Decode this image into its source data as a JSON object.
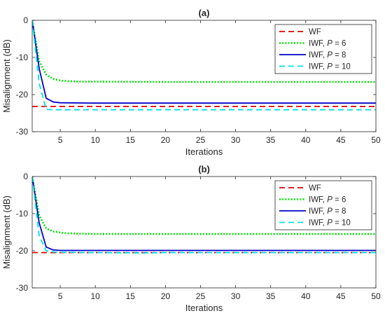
{
  "chart_data": [
    {
      "type": "line",
      "title": "(a)",
      "xlabel": "Iterations",
      "ylabel": "Misalignment (dB)",
      "xlim": [
        1,
        50
      ],
      "ylim": [
        -30,
        0
      ],
      "xticks": [
        5,
        10,
        15,
        20,
        25,
        30,
        35,
        40,
        45,
        50
      ],
      "yticks": [
        -30,
        -20,
        -10,
        0
      ],
      "grid": false,
      "legend_position": "top-right",
      "series": [
        {
          "name": "WF",
          "legend_prefix": "WF",
          "legend_param": "",
          "legend_value": "",
          "color": "#e00000",
          "style": "dashed",
          "x": [
            1,
            50
          ],
          "y": [
            -23.2,
            -23.2
          ]
        },
        {
          "name": "IWF, P = 6",
          "legend_prefix": "IWF, ",
          "legend_param": "P",
          "legend_value": " = 6",
          "color": "#00e000",
          "style": "dotted",
          "x": [
            1,
            2,
            3,
            4,
            5,
            6,
            8,
            10,
            20,
            30,
            40,
            50
          ],
          "y": [
            0,
            -11,
            -14.6,
            -15.8,
            -16.2,
            -16.4,
            -16.5,
            -16.5,
            -16.6,
            -16.6,
            -16.6,
            -16.6
          ]
        },
        {
          "name": "IWF, P = 8",
          "legend_prefix": "IWF, ",
          "legend_param": "P",
          "legend_value": " = 8",
          "color": "#0000c8",
          "style": "solid",
          "x": [
            1,
            2,
            3,
            4,
            5,
            10,
            20,
            30,
            40,
            50
          ],
          "y": [
            0,
            -13,
            -21,
            -22,
            -22.2,
            -22.3,
            -22.3,
            -22.3,
            -22.3,
            -22.3
          ]
        },
        {
          "name": "IWF, P = 10",
          "legend_prefix": "IWF, ",
          "legend_param": "P",
          "legend_value": " = 10",
          "color": "#00e0e8",
          "style": "dashed",
          "x": [
            1,
            2,
            3,
            4,
            5,
            10,
            20,
            30,
            40,
            50
          ],
          "y": [
            0,
            -17,
            -24,
            -24.1,
            -24.1,
            -24.1,
            -24.1,
            -24.1,
            -24.1,
            -24.1
          ]
        }
      ]
    },
    {
      "type": "line",
      "title": "(b)",
      "xlabel": "Iterations",
      "ylabel": "Misalignment (dB)",
      "xlim": [
        1,
        50
      ],
      "ylim": [
        -30,
        0
      ],
      "xticks": [
        5,
        10,
        15,
        20,
        25,
        30,
        35,
        40,
        45,
        50
      ],
      "yticks": [
        -30,
        -20,
        -10,
        0
      ],
      "grid": false,
      "legend_position": "top-right",
      "series": [
        {
          "name": "WF",
          "legend_prefix": "WF",
          "legend_param": "",
          "legend_value": "",
          "color": "#e00000",
          "style": "dashed",
          "x": [
            1,
            50
          ],
          "y": [
            -20.5,
            -20.5
          ]
        },
        {
          "name": "IWF, P = 6",
          "legend_prefix": "IWF, ",
          "legend_param": "P",
          "legend_value": " = 6",
          "color": "#00e000",
          "style": "dotted",
          "x": [
            1,
            2,
            3,
            4,
            5,
            6,
            8,
            10,
            20,
            30,
            40,
            50
          ],
          "y": [
            0,
            -10.5,
            -14,
            -14.8,
            -15.1,
            -15.3,
            -15.4,
            -15.5,
            -15.5,
            -15.5,
            -15.5,
            -15.5
          ]
        },
        {
          "name": "IWF, P = 8",
          "legend_prefix": "IWF, ",
          "legend_param": "P",
          "legend_value": " = 8",
          "color": "#0000c8",
          "style": "solid",
          "x": [
            1,
            2,
            3,
            4,
            5,
            10,
            20,
            30,
            40,
            50
          ],
          "y": [
            0,
            -12.5,
            -19,
            -19.8,
            -19.9,
            -19.9,
            -19.9,
            -19.9,
            -19.9,
            -19.9
          ]
        },
        {
          "name": "IWF, P = 10",
          "legend_prefix": "IWF, ",
          "legend_param": "P",
          "legend_value": " = 10",
          "color": "#00e0e8",
          "style": "dashed",
          "x": [
            1,
            2,
            3,
            4,
            5,
            10,
            17,
            20,
            30,
            40,
            50
          ],
          "y": [
            0,
            -16,
            -20,
            -20.3,
            -20.4,
            -20.5,
            -20.6,
            -20.5,
            -20.5,
            -20.5,
            -20.5
          ]
        }
      ]
    }
  ]
}
